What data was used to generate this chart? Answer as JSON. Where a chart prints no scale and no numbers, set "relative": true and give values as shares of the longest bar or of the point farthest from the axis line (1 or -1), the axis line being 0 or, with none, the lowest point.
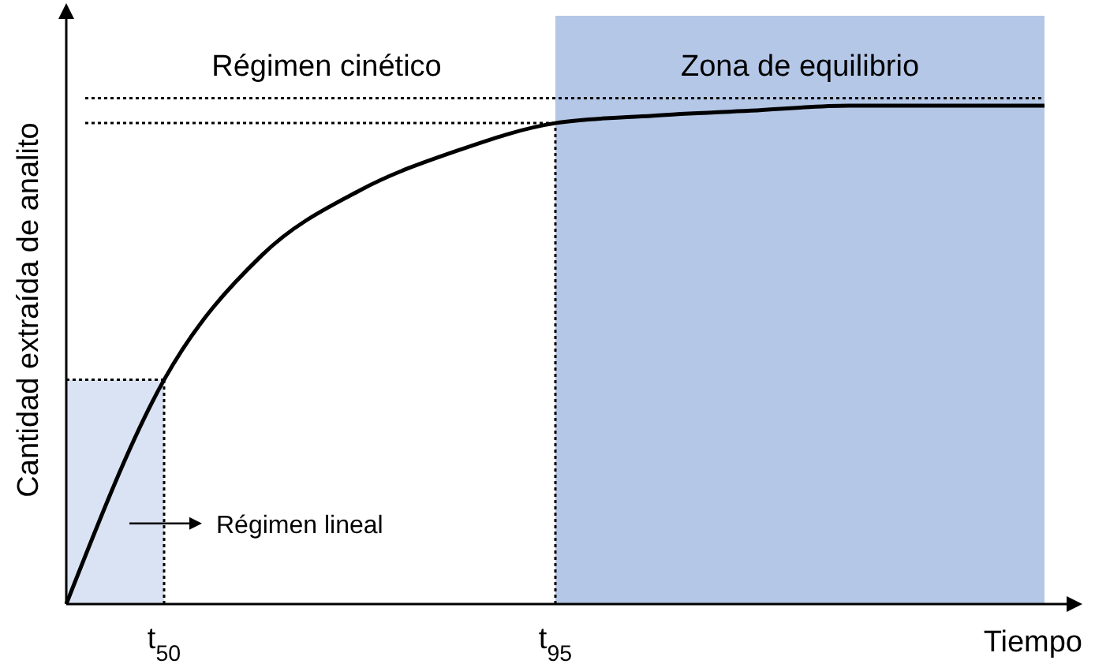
{
  "chart_data": {
    "type": "line",
    "relative": true,
    "xlabel": "Tiempo",
    "ylabel": "Cantidad extraída de analito",
    "categories": [
      null,
      "t$_{50}$",
      null,
      null,
      null,
      "t$_{95}$",
      null,
      null,
      null,
      null,
      null
    ],
    "series": [
      {
        "color": "#000000",
        "values": [
          0,
          0.45,
          0.7,
          0.83,
          0.91,
          0.965,
          0.98,
          0.99,
          1.0,
          1.0,
          1.0
        ]
      }
    ],
    "ref_lines": [
      {
        "axis": "y",
        "value": 1.015,
        "line_style": "dotted"
      },
      {
        "axis": "y",
        "value": 0.965,
        "line_style": "dotted"
      },
      {
        "axis": "y",
        "value": 0.45,
        "line_style": "dotted"
      },
      {
        "axis": "x",
        "value": "t$_{50}$",
        "line_style": "dotted"
      },
      {
        "axis": "x",
        "value": "t$_{95}$",
        "line_style": "dotted"
      }
    ],
    "bands": [
      {
        "axis": "y",
        "from": 0,
        "to": 0.45,
        "label": "Régimen lineal",
        "color": "#dae3f3"
      }
    ],
    "annotations": [
      "Régimen cinético",
      "Zona de equilibrio"
    ],
    "grid": false,
    "marker": "none",
    "line_style": "solid"
  }
}
